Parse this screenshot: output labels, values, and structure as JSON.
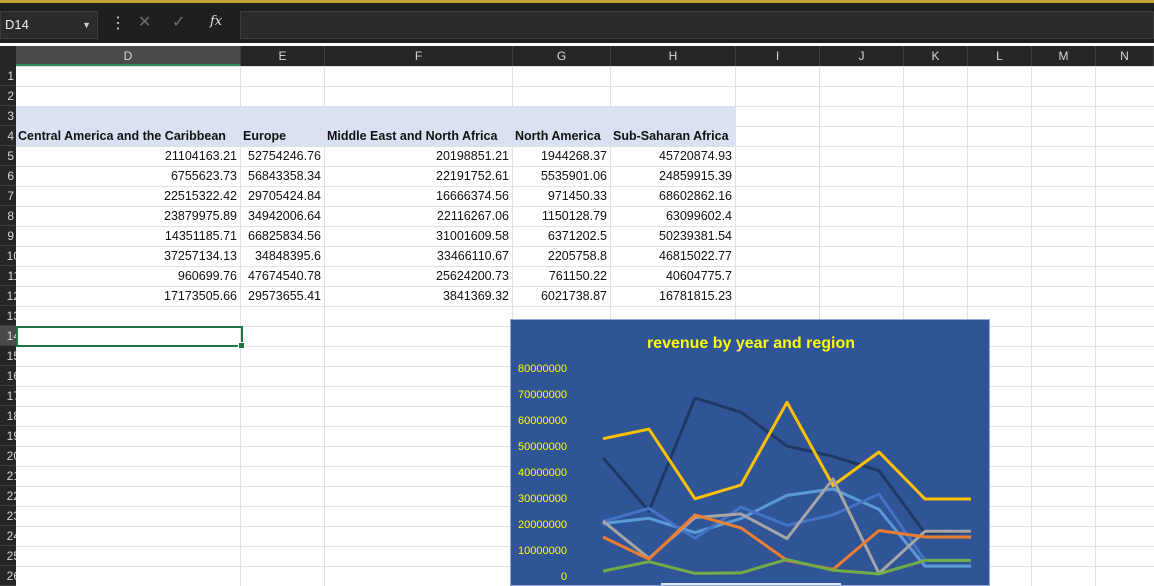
{
  "formula_bar": {
    "name_box": "D14",
    "formula_value": ""
  },
  "columns": [
    "D",
    "E",
    "F",
    "G",
    "H",
    "I",
    "J",
    "K",
    "L",
    "M",
    "N"
  ],
  "rows": [
    "1",
    "2",
    "3",
    "4",
    "5",
    "6",
    "7",
    "8",
    "9",
    "10",
    "11",
    "12",
    "13",
    "14",
    "15",
    "16",
    "17",
    "18",
    "19",
    "20",
    "21",
    "22",
    "23",
    "24",
    "25",
    "26"
  ],
  "table": {
    "headers": [
      "Central America and the Caribbean",
      "Europe",
      "Middle East and North Africa",
      "North America",
      "Sub-Saharan Africa"
    ],
    "rows": [
      [
        "21104163.21",
        "52754246.76",
        "20198851.21",
        "1944268.37",
        "45720874.93"
      ],
      [
        "6755623.73",
        "56843358.34",
        "22191752.61",
        "5535901.06",
        "24859915.39"
      ],
      [
        "22515322.42",
        "29705424.84",
        "16666374.56",
        "971450.33",
        "68602862.16"
      ],
      [
        "23879975.89",
        "34942006.64",
        "22116267.06",
        "1150128.79",
        "63099602.4"
      ],
      [
        "14351185.71",
        "66825834.56",
        "31001609.58",
        "6371202.5",
        "50239381.54"
      ],
      [
        "37257134.13",
        "34848395.6",
        "33466110.67",
        "2205758.8",
        "46815022.77"
      ],
      [
        "960699.76",
        "47674540.78",
        "25624200.73",
        "761150.22",
        "40604775.7"
      ],
      [
        "17173505.66",
        "29573655.41",
        "3841369.32",
        "6021738.87",
        "16781815.23"
      ]
    ]
  },
  "chart_data": {
    "type": "line",
    "title": "revenue by year and region",
    "title_color": "#ffff00",
    "background": "#2f5597",
    "ylim": [
      0,
      80000000
    ],
    "yticks": [
      "80000000",
      "70000000",
      "60000000",
      "50000000",
      "40000000",
      "30000000",
      "20000000",
      "10000000",
      "0"
    ],
    "x": [
      1,
      2,
      3,
      4,
      5,
      6,
      7,
      8,
      9
    ],
    "series": [
      {
        "color": "#203864",
        "values": [
          45500000,
          25000000,
          68500000,
          63000000,
          50000000,
          46000000,
          40500000,
          16500000,
          17000000
        ]
      },
      {
        "color": "#ffc000",
        "values": [
          52800000,
          56500000,
          29700000,
          35000000,
          66800000,
          34800000,
          47700000,
          29600000,
          29600000
        ]
      },
      {
        "color": "#5b9bd5",
        "values": [
          20200000,
          22200000,
          16700000,
          22100000,
          31000000,
          33500000,
          25600000,
          3800000,
          3800000
        ]
      },
      {
        "color": "#4472c4",
        "values": [
          21000000,
          26000000,
          14500000,
          26500000,
          19500000,
          23500000,
          31500000,
          6000000,
          6000000
        ]
      },
      {
        "color": "#a5a5a5",
        "values": [
          21100000,
          6800000,
          22500000,
          23900000,
          14400000,
          37300000,
          1000000,
          17200000,
          17200000
        ]
      },
      {
        "color": "#ed7d31",
        "values": [
          15000000,
          6500000,
          23500000,
          18500000,
          6000000,
          2500000,
          17500000,
          15000000,
          15000000
        ]
      },
      {
        "color": "#70ad47",
        "values": [
          1900000,
          5500000,
          1000000,
          1200000,
          6400000,
          2200000,
          800000,
          6000000,
          6000000
        ]
      }
    ]
  }
}
